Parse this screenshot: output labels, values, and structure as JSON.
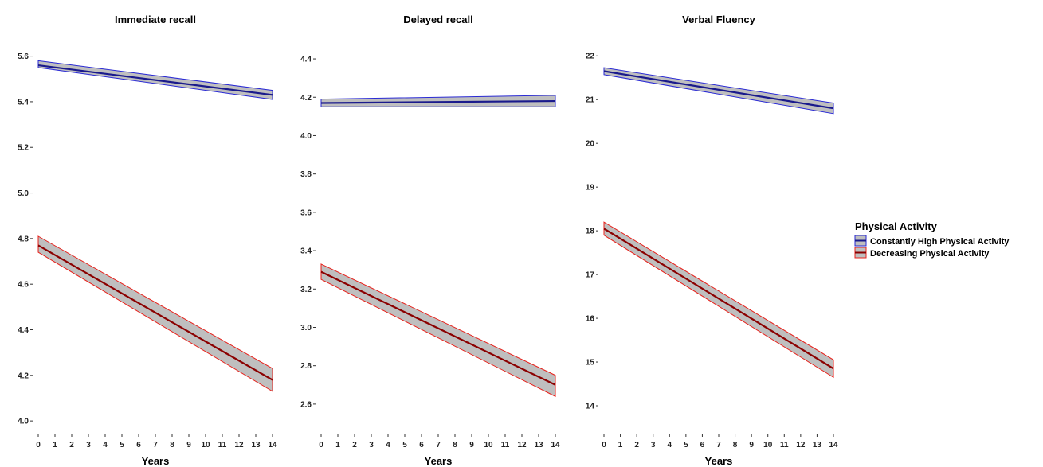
{
  "legend": {
    "title": "Physical Activity",
    "entries": [
      {
        "label": "Constantly High Physical Activity",
        "line_color": "#1a1a8c",
        "border_color": "#2a2ad4",
        "fill_color": "#bfbfbf"
      },
      {
        "label": "Decreasing Physical Activity",
        "line_color": "#8b0000",
        "border_color": "#e8211b",
        "fill_color": "#bfbfbf"
      }
    ]
  },
  "chart_data": [
    {
      "type": "line",
      "title": "Immediate recall",
      "xlabel": "Years",
      "ylabel": "",
      "xlim": [
        0,
        14
      ],
      "ylim": [
        3.99,
        5.63
      ],
      "xticks": [
        0,
        1,
        2,
        3,
        4,
        5,
        6,
        7,
        8,
        9,
        10,
        11,
        12,
        13,
        14
      ],
      "yticks": [
        4.0,
        4.2,
        4.4,
        4.6,
        4.8,
        5.0,
        5.2,
        5.4,
        5.6
      ],
      "ytick_labels": [
        "4.0",
        "4.2",
        "4.4",
        "4.6",
        "4.8",
        "5.0",
        "5.2",
        "5.4",
        "5.6"
      ],
      "series": [
        {
          "name": "Constantly High Physical Activity",
          "x": [
            0,
            14
          ],
          "y": [
            5.56,
            5.43
          ],
          "lower": [
            5.55,
            5.41
          ],
          "upper": [
            5.58,
            5.45
          ]
        },
        {
          "name": "Decreasing Physical Activity",
          "x": [
            0,
            14
          ],
          "y": [
            4.77,
            4.18
          ],
          "lower": [
            4.74,
            4.13
          ],
          "upper": [
            4.81,
            4.23
          ]
        }
      ],
      "grid": false,
      "legend": "right"
    },
    {
      "type": "line",
      "title": "Delayed recall",
      "xlabel": "Years",
      "ylabel": "",
      "xlim": [
        0,
        14
      ],
      "ylim": [
        2.5,
        4.45
      ],
      "xticks": [
        0,
        1,
        2,
        3,
        4,
        5,
        6,
        7,
        8,
        9,
        10,
        11,
        12,
        13,
        14
      ],
      "yticks": [
        2.6,
        2.8,
        3.0,
        3.2,
        3.4,
        3.6,
        3.8,
        4.0,
        4.2,
        4.4
      ],
      "ytick_labels": [
        "2.6",
        "2.8",
        "3.0",
        "3.2",
        "3.4",
        "3.6",
        "3.8",
        "4.0",
        "4.2",
        "4.4"
      ],
      "series": [
        {
          "name": "Constantly High Physical Activity",
          "x": [
            0,
            14
          ],
          "y": [
            4.17,
            4.18
          ],
          "lower": [
            4.15,
            4.15
          ],
          "upper": [
            4.19,
            4.21
          ]
        },
        {
          "name": "Decreasing Physical Activity",
          "x": [
            0,
            14
          ],
          "y": [
            3.29,
            2.7
          ],
          "lower": [
            3.25,
            2.64
          ],
          "upper": [
            3.33,
            2.75
          ]
        }
      ],
      "grid": false,
      "legend": "right"
    },
    {
      "type": "line",
      "title": "Verbal Fluency",
      "xlabel": "Years",
      "ylabel": "",
      "xlim": [
        0,
        14
      ],
      "ylim": [
        13.6,
        22.15
      ],
      "xticks": [
        0,
        1,
        2,
        3,
        4,
        5,
        6,
        7,
        8,
        9,
        10,
        11,
        12,
        13,
        14
      ],
      "yticks": [
        14,
        15,
        16,
        17,
        18,
        19,
        20,
        21,
        22
      ],
      "ytick_labels": [
        "14",
        "15",
        "16",
        "17",
        "18",
        "19",
        "20",
        "21",
        "22"
      ],
      "series": [
        {
          "name": "Constantly High Physical Activity",
          "x": [
            0,
            14
          ],
          "y": [
            21.65,
            20.8
          ],
          "lower": [
            21.57,
            20.68
          ],
          "upper": [
            21.73,
            20.92
          ]
        },
        {
          "name": "Decreasing Physical Activity",
          "x": [
            0,
            14
          ],
          "y": [
            18.05,
            14.85
          ],
          "lower": [
            17.9,
            14.65
          ],
          "upper": [
            18.2,
            15.05
          ]
        }
      ],
      "grid": false,
      "legend": "right"
    }
  ]
}
